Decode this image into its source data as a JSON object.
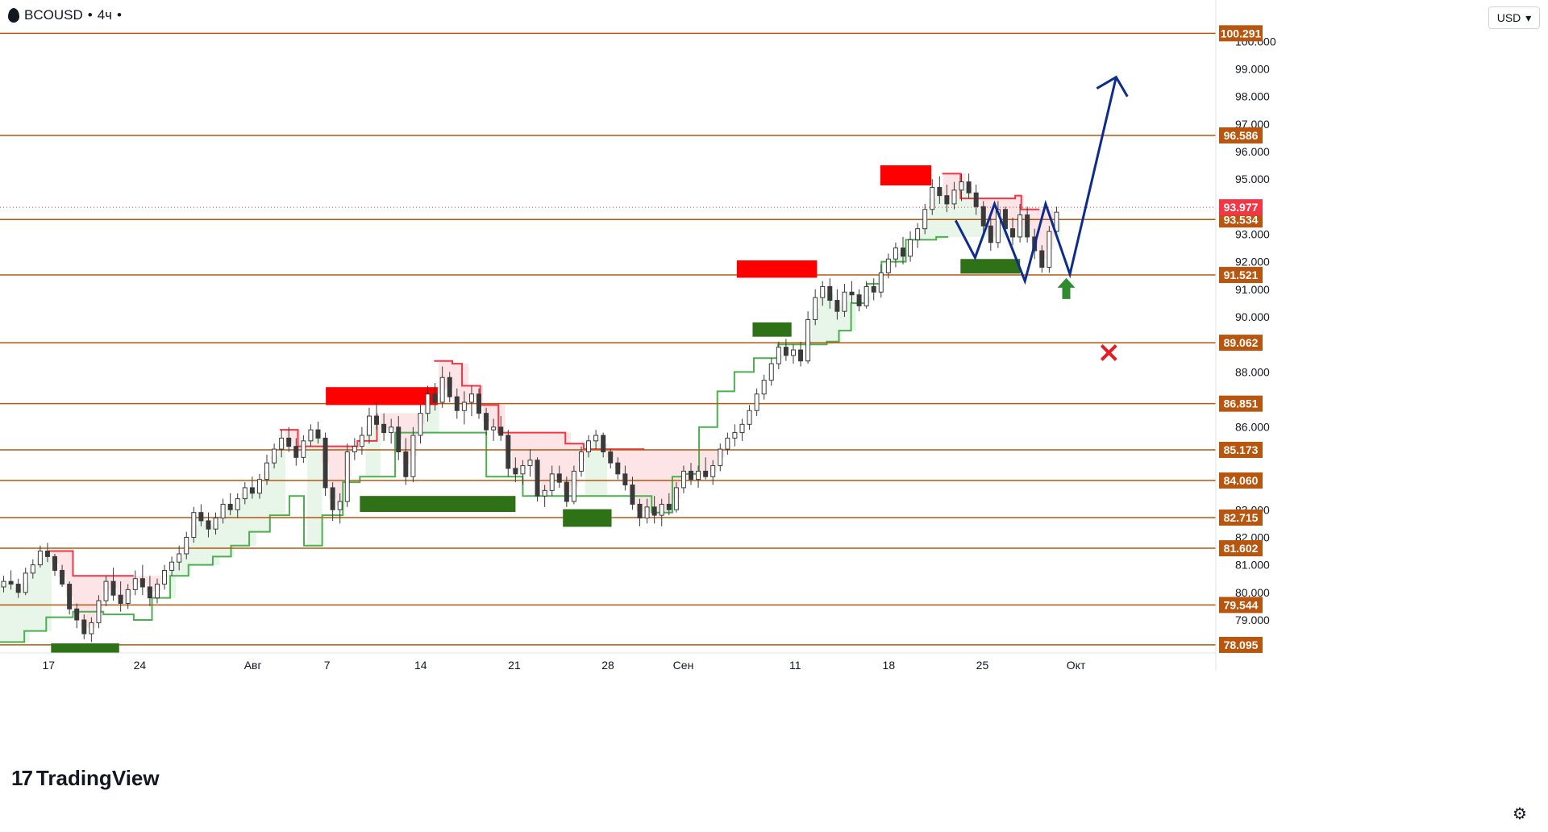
{
  "header": {
    "symbol": "BCOUSD",
    "interval": "4ч",
    "currency": "USD"
  },
  "branding": {
    "logo_text": "TradingView"
  },
  "chart_data": {
    "type": "candlestick",
    "y_axis": {
      "min": 77.8,
      "max": 101.5,
      "ticks": [
        "79.000",
        "80.000",
        "81.000",
        "82.000",
        "83.000",
        "86.000",
        "88.000",
        "90.000",
        "91.000",
        "92.000",
        "93.000",
        "95.000",
        "96.000",
        "97.000",
        "98.000",
        "99.000",
        "100.000"
      ]
    },
    "x_axis": {
      "ticks": [
        {
          "label": "17",
          "pos": 0.04
        },
        {
          "label": "24",
          "pos": 0.115
        },
        {
          "label": "Авг",
          "pos": 0.208
        },
        {
          "label": "7",
          "pos": 0.269
        },
        {
          "label": "14",
          "pos": 0.346
        },
        {
          "label": "21",
          "pos": 0.423
        },
        {
          "label": "28",
          "pos": 0.5
        },
        {
          "label": "Сен",
          "pos": 0.562
        },
        {
          "label": "11",
          "pos": 0.654
        },
        {
          "label": "18",
          "pos": 0.731
        },
        {
          "label": "25",
          "pos": 0.808
        },
        {
          "label": "Окт",
          "pos": 0.885
        }
      ]
    },
    "levels": [
      {
        "value": 100.291,
        "label": "100.291"
      },
      {
        "value": 96.586,
        "label": "96.586"
      },
      {
        "value": 93.534,
        "label": "93.534"
      },
      {
        "value": 91.521,
        "label": "91.521"
      },
      {
        "value": 89.062,
        "label": "89.062"
      },
      {
        "value": 86.851,
        "label": "86.851"
      },
      {
        "value": 85.173,
        "label": "85.173"
      },
      {
        "value": 84.06,
        "label": "84.060"
      },
      {
        "value": 82.715,
        "label": "82.715"
      },
      {
        "value": 81.602,
        "label": "81.602"
      },
      {
        "value": 79.544,
        "label": "79.544"
      },
      {
        "value": 78.095,
        "label": "78.095"
      }
    ],
    "current_price": {
      "value": 93.977,
      "label": "93.977"
    },
    "callouts": [
      {
        "value": 100.291,
        "label": "100.291",
        "style": "black"
      },
      {
        "value": 96.586,
        "label": "96.586",
        "style": "black"
      },
      {
        "value": 91.521,
        "label": "91.521",
        "style": "green"
      },
      {
        "value": 89.062,
        "label": "89.062",
        "style": "red"
      }
    ],
    "supply_zones": [
      {
        "t0": 0.268,
        "t1": 0.36,
        "low": 86.8,
        "high": 87.45
      },
      {
        "t0": 0.606,
        "t1": 0.672,
        "low": 91.42,
        "high": 92.05
      },
      {
        "t0": 0.724,
        "t1": 0.766,
        "low": 94.77,
        "high": 95.5
      }
    ],
    "demand_zones": [
      {
        "t0": 0.042,
        "t1": 0.098,
        "low": 77.8,
        "high": 78.15
      },
      {
        "t0": 0.296,
        "t1": 0.424,
        "low": 82.92,
        "high": 83.5
      },
      {
        "t0": 0.463,
        "t1": 0.503,
        "low": 82.38,
        "high": 83.02
      },
      {
        "t0": 0.619,
        "t1": 0.651,
        "low": 89.28,
        "high": 89.8
      },
      {
        "t0": 0.79,
        "t1": 0.839,
        "low": 91.57,
        "high": 92.1
      }
    ],
    "trailing_stop_up": [
      [
        0.0,
        78.2
      ],
      [
        0.02,
        78.6
      ],
      [
        0.038,
        79.1
      ],
      [
        0.06,
        79.3
      ],
      [
        0.085,
        79.2
      ],
      [
        0.11,
        79.0
      ],
      [
        0.125,
        79.8
      ],
      [
        0.14,
        80.6
      ],
      [
        0.155,
        81.0
      ],
      [
        0.175,
        81.3
      ],
      [
        0.19,
        81.7
      ],
      [
        0.205,
        82.2
      ],
      [
        0.222,
        82.8
      ],
      [
        0.238,
        83.5
      ],
      [
        0.25,
        81.7
      ],
      [
        0.265,
        82.8
      ],
      [
        0.282,
        84.0
      ],
      [
        0.296,
        84.2
      ],
      [
        0.31,
        84.2
      ],
      [
        0.325,
        85.8
      ],
      [
        0.345,
        85.8
      ],
      [
        0.362,
        85.8
      ],
      [
        0.372,
        85.8
      ],
      [
        0.4,
        84.2
      ],
      [
        0.43,
        83.5
      ],
      [
        0.47,
        83.5
      ],
      [
        0.5,
        83.5
      ],
      [
        0.536,
        82.9
      ],
      [
        0.553,
        84.2
      ],
      [
        0.563,
        84.3
      ],
      [
        0.575,
        86.0
      ],
      [
        0.59,
        87.3
      ],
      [
        0.604,
        88.0
      ],
      [
        0.62,
        88.5
      ],
      [
        0.64,
        89.0
      ],
      [
        0.68,
        89.1
      ],
      [
        0.69,
        89.5
      ],
      [
        0.7,
        90.5
      ],
      [
        0.713,
        91.2
      ],
      [
        0.725,
        92.0
      ],
      [
        0.745,
        92.8
      ],
      [
        0.77,
        92.9
      ],
      [
        0.78,
        92.9
      ]
    ],
    "trailing_stop_down": [
      [
        0.04,
        81.5
      ],
      [
        0.06,
        80.6
      ],
      [
        0.08,
        80.6
      ],
      [
        0.11,
        80.6
      ],
      [
        0.23,
        85.9
      ],
      [
        0.245,
        85.3
      ],
      [
        0.294,
        85.5
      ],
      [
        0.31,
        86.5
      ],
      [
        0.357,
        88.4
      ],
      [
        0.372,
        88.3
      ],
      [
        0.38,
        87.5
      ],
      [
        0.395,
        86.8
      ],
      [
        0.41,
        85.8
      ],
      [
        0.438,
        85.8
      ],
      [
        0.465,
        85.4
      ],
      [
        0.48,
        85.2
      ],
      [
        0.53,
        85.2
      ],
      [
        0.775,
        95.2
      ],
      [
        0.79,
        94.3
      ],
      [
        0.835,
        94.4
      ],
      [
        0.84,
        93.9
      ],
      [
        0.855,
        93.9
      ]
    ],
    "candles": [
      [
        80.2,
        80.6,
        80.0,
        80.4
      ],
      [
        80.4,
        80.8,
        80.1,
        80.3
      ],
      [
        80.3,
        80.5,
        79.8,
        80.0
      ],
      [
        80.0,
        80.9,
        79.9,
        80.7
      ],
      [
        80.7,
        81.2,
        80.5,
        81.0
      ],
      [
        81.0,
        81.7,
        80.9,
        81.5
      ],
      [
        81.5,
        81.8,
        81.1,
        81.3
      ],
      [
        81.3,
        81.4,
        80.6,
        80.8
      ],
      [
        80.8,
        81.0,
        80.2,
        80.3
      ],
      [
        80.3,
        80.4,
        79.2,
        79.4
      ],
      [
        79.4,
        79.6,
        78.7,
        79.0
      ],
      [
        79.0,
        79.2,
        78.3,
        78.5
      ],
      [
        78.5,
        79.1,
        78.2,
        78.9
      ],
      [
        78.9,
        79.9,
        78.7,
        79.7
      ],
      [
        79.7,
        80.6,
        79.5,
        80.4
      ],
      [
        80.4,
        80.9,
        79.7,
        79.9
      ],
      [
        79.9,
        80.4,
        79.3,
        79.6
      ],
      [
        79.6,
        80.3,
        79.4,
        80.1
      ],
      [
        80.1,
        80.8,
        79.9,
        80.5
      ],
      [
        80.5,
        81.0,
        79.9,
        80.2
      ],
      [
        80.2,
        80.6,
        79.5,
        79.8
      ],
      [
        79.8,
        80.5,
        79.6,
        80.3
      ],
      [
        80.3,
        81.0,
        80.1,
        80.8
      ],
      [
        80.8,
        81.3,
        80.6,
        81.1
      ],
      [
        81.1,
        81.7,
        80.8,
        81.4
      ],
      [
        81.4,
        82.2,
        81.2,
        82.0
      ],
      [
        82.0,
        83.1,
        81.8,
        82.9
      ],
      [
        82.9,
        83.2,
        82.4,
        82.6
      ],
      [
        82.6,
        82.9,
        82.0,
        82.3
      ],
      [
        82.3,
        82.9,
        82.1,
        82.7
      ],
      [
        82.7,
        83.4,
        82.5,
        83.2
      ],
      [
        83.2,
        83.6,
        82.8,
        83.0
      ],
      [
        83.0,
        83.6,
        82.7,
        83.4
      ],
      [
        83.4,
        84.0,
        83.2,
        83.8
      ],
      [
        83.8,
        84.2,
        83.4,
        83.6
      ],
      [
        83.6,
        84.3,
        83.4,
        84.1
      ],
      [
        84.1,
        85.0,
        83.9,
        84.7
      ],
      [
        84.7,
        85.4,
        84.5,
        85.2
      ],
      [
        85.2,
        85.9,
        84.9,
        85.6
      ],
      [
        85.6,
        86.0,
        85.1,
        85.3
      ],
      [
        85.3,
        85.6,
        84.6,
        84.9
      ],
      [
        84.9,
        85.7,
        84.7,
        85.5
      ],
      [
        85.5,
        86.1,
        85.3,
        85.9
      ],
      [
        85.9,
        86.2,
        85.4,
        85.6
      ],
      [
        85.6,
        85.8,
        83.5,
        83.8
      ],
      [
        83.8,
        84.0,
        82.6,
        83.0
      ],
      [
        83.0,
        83.6,
        82.5,
        83.3
      ],
      [
        83.3,
        85.4,
        83.1,
        85.1
      ],
      [
        85.1,
        85.6,
        84.8,
        85.3
      ],
      [
        85.3,
        86.0,
        85.0,
        85.7
      ],
      [
        85.7,
        86.7,
        85.4,
        86.4
      ],
      [
        86.4,
        86.9,
        85.9,
        86.1
      ],
      [
        86.1,
        86.5,
        85.5,
        85.8
      ],
      [
        85.8,
        86.3,
        85.4,
        86.0
      ],
      [
        86.0,
        86.4,
        84.8,
        85.1
      ],
      [
        85.1,
        85.6,
        83.9,
        84.2
      ],
      [
        84.2,
        86.0,
        84.0,
        85.7
      ],
      [
        85.7,
        86.8,
        85.4,
        86.5
      ],
      [
        86.5,
        87.5,
        86.2,
        87.2
      ],
      [
        87.2,
        87.6,
        86.6,
        86.9
      ],
      [
        86.9,
        88.2,
        86.7,
        87.8
      ],
      [
        87.8,
        88.0,
        86.9,
        87.1
      ],
      [
        87.1,
        87.4,
        86.3,
        86.6
      ],
      [
        86.6,
        87.3,
        86.1,
        86.9
      ],
      [
        86.9,
        87.5,
        86.4,
        87.2
      ],
      [
        87.2,
        87.4,
        86.3,
        86.5
      ],
      [
        86.5,
        86.7,
        85.7,
        85.9
      ],
      [
        85.9,
        86.3,
        85.5,
        86.0
      ],
      [
        86.0,
        86.4,
        85.5,
        85.7
      ],
      [
        85.7,
        85.9,
        84.2,
        84.5
      ],
      [
        84.5,
        84.9,
        84.0,
        84.3
      ],
      [
        84.3,
        84.8,
        83.9,
        84.6
      ],
      [
        84.6,
        85.2,
        84.2,
        84.8
      ],
      [
        84.8,
        84.9,
        83.3,
        83.5
      ],
      [
        83.5,
        83.9,
        83.1,
        83.7
      ],
      [
        83.7,
        84.6,
        83.5,
        84.3
      ],
      [
        84.3,
        84.6,
        83.8,
        84.0
      ],
      [
        84.0,
        84.2,
        83.1,
        83.3
      ],
      [
        83.3,
        84.6,
        83.2,
        84.4
      ],
      [
        84.4,
        85.3,
        84.2,
        85.1
      ],
      [
        85.1,
        85.7,
        84.9,
        85.5
      ],
      [
        85.5,
        85.9,
        85.2,
        85.7
      ],
      [
        85.7,
        85.8,
        84.9,
        85.1
      ],
      [
        85.1,
        85.2,
        84.5,
        84.7
      ],
      [
        84.7,
        84.9,
        84.1,
        84.3
      ],
      [
        84.3,
        84.6,
        83.7,
        83.9
      ],
      [
        83.9,
        84.2,
        83.0,
        83.2
      ],
      [
        83.2,
        83.4,
        82.4,
        82.7
      ],
      [
        82.7,
        83.4,
        82.5,
        83.1
      ],
      [
        83.1,
        83.5,
        82.5,
        82.8
      ],
      [
        82.8,
        83.4,
        82.4,
        83.2
      ],
      [
        83.2,
        83.6,
        82.8,
        83.0
      ],
      [
        83.0,
        84.0,
        82.9,
        83.8
      ],
      [
        83.8,
        84.6,
        83.6,
        84.4
      ],
      [
        84.4,
        84.7,
        83.9,
        84.1
      ],
      [
        84.1,
        84.6,
        83.8,
        84.4
      ],
      [
        84.4,
        84.9,
        84.1,
        84.2
      ],
      [
        84.2,
        84.8,
        83.9,
        84.6
      ],
      [
        84.6,
        85.4,
        84.4,
        85.2
      ],
      [
        85.2,
        85.8,
        85.0,
        85.6
      ],
      [
        85.6,
        86.1,
        85.3,
        85.8
      ],
      [
        85.8,
        86.3,
        85.5,
        86.1
      ],
      [
        86.1,
        86.8,
        85.9,
        86.6
      ],
      [
        86.6,
        87.4,
        86.4,
        87.2
      ],
      [
        87.2,
        87.9,
        87.0,
        87.7
      ],
      [
        87.7,
        88.5,
        87.5,
        88.3
      ],
      [
        88.3,
        89.1,
        88.1,
        88.9
      ],
      [
        88.9,
        89.2,
        88.4,
        88.6
      ],
      [
        88.6,
        89.0,
        88.3,
        88.8
      ],
      [
        88.8,
        89.1,
        88.2,
        88.4
      ],
      [
        88.4,
        90.2,
        88.3,
        89.9
      ],
      [
        89.9,
        91.0,
        89.7,
        90.7
      ],
      [
        90.7,
        91.3,
        90.4,
        91.1
      ],
      [
        91.1,
        91.4,
        90.3,
        90.6
      ],
      [
        90.6,
        91.0,
        89.9,
        90.2
      ],
      [
        90.2,
        91.2,
        90.0,
        90.9
      ],
      [
        90.9,
        91.3,
        90.5,
        90.8
      ],
      [
        90.8,
        91.0,
        90.2,
        90.4
      ],
      [
        90.4,
        91.3,
        90.3,
        91.1
      ],
      [
        91.1,
        91.4,
        90.6,
        90.9
      ],
      [
        90.9,
        91.9,
        90.7,
        91.6
      ],
      [
        91.6,
        92.3,
        91.4,
        92.1
      ],
      [
        92.1,
        92.7,
        91.8,
        92.5
      ],
      [
        92.5,
        92.9,
        91.9,
        92.2
      ],
      [
        92.2,
        93.1,
        92.0,
        92.8
      ],
      [
        92.8,
        93.4,
        92.5,
        93.2
      ],
      [
        93.2,
        94.1,
        93.0,
        93.9
      ],
      [
        93.9,
        95.0,
        93.7,
        94.7
      ],
      [
        94.7,
        95.1,
        94.1,
        94.4
      ],
      [
        94.4,
        94.8,
        93.8,
        94.1
      ],
      [
        94.1,
        94.9,
        93.9,
        94.6
      ],
      [
        94.6,
        95.2,
        94.2,
        94.9
      ],
      [
        94.9,
        95.2,
        94.3,
        94.5
      ],
      [
        94.5,
        94.8,
        93.7,
        94.0
      ],
      [
        94.0,
        94.2,
        93.0,
        93.3
      ],
      [
        93.3,
        93.6,
        92.4,
        92.7
      ],
      [
        92.7,
        94.2,
        92.5,
        93.9
      ],
      [
        93.9,
        94.0,
        93.0,
        93.2
      ],
      [
        93.2,
        93.6,
        92.6,
        92.9
      ],
      [
        92.9,
        94.1,
        92.7,
        93.7
      ],
      [
        93.7,
        94.0,
        92.7,
        92.9
      ],
      [
        92.9,
        93.2,
        92.1,
        92.4
      ],
      [
        92.4,
        92.6,
        91.6,
        91.8
      ],
      [
        91.8,
        93.3,
        91.6,
        93.1
      ],
      [
        93.1,
        94.0,
        92.9,
        93.8
      ]
    ],
    "projection": [
      [
        0.786,
        93.5
      ],
      [
        0.802,
        92.15
      ],
      [
        0.818,
        94.1
      ],
      [
        0.843,
        91.3
      ],
      [
        0.86,
        94.1
      ],
      [
        0.88,
        91.55
      ],
      [
        0.918,
        98.7
      ]
    ],
    "signals": [
      {
        "type": "buy-arrow",
        "t": 0.877,
        "value": 91.0
      },
      {
        "type": "stop-cross",
        "t": 0.912,
        "value": 88.7
      }
    ]
  }
}
